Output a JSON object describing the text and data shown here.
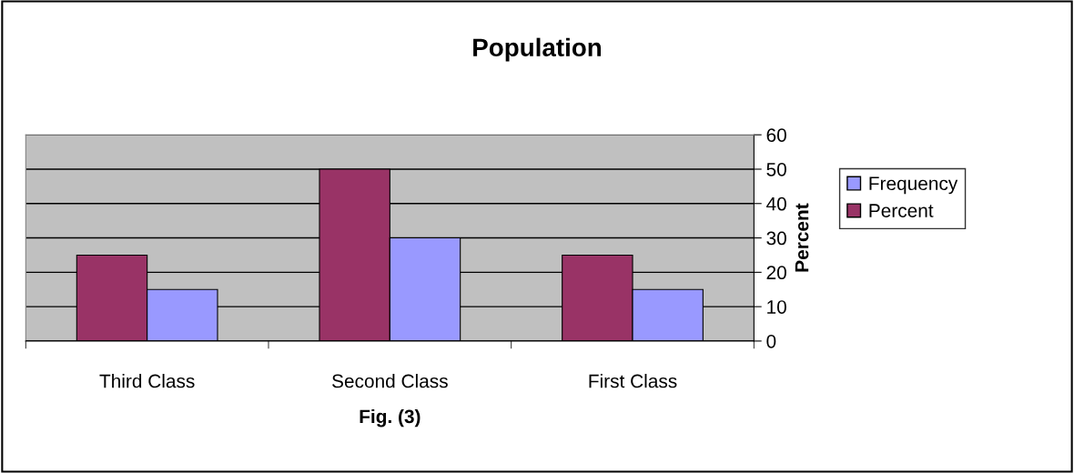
{
  "chart_data": {
    "type": "bar",
    "title": "Population",
    "xlabel": "Fig. (3)",
    "ylabel": "Percent",
    "categories": [
      "Third Class",
      "Second Class",
      "First Class"
    ],
    "series": [
      {
        "name": "Percent",
        "color": "#993366",
        "values": [
          25,
          50,
          25
        ]
      },
      {
        "name": "Frequency",
        "color": "#9999ff",
        "values": [
          15,
          30,
          15
        ]
      }
    ],
    "ylim": [
      0,
      60
    ],
    "yticks": [
      0,
      10,
      20,
      30,
      40,
      50,
      60
    ],
    "grid": "y",
    "legend": "right"
  }
}
